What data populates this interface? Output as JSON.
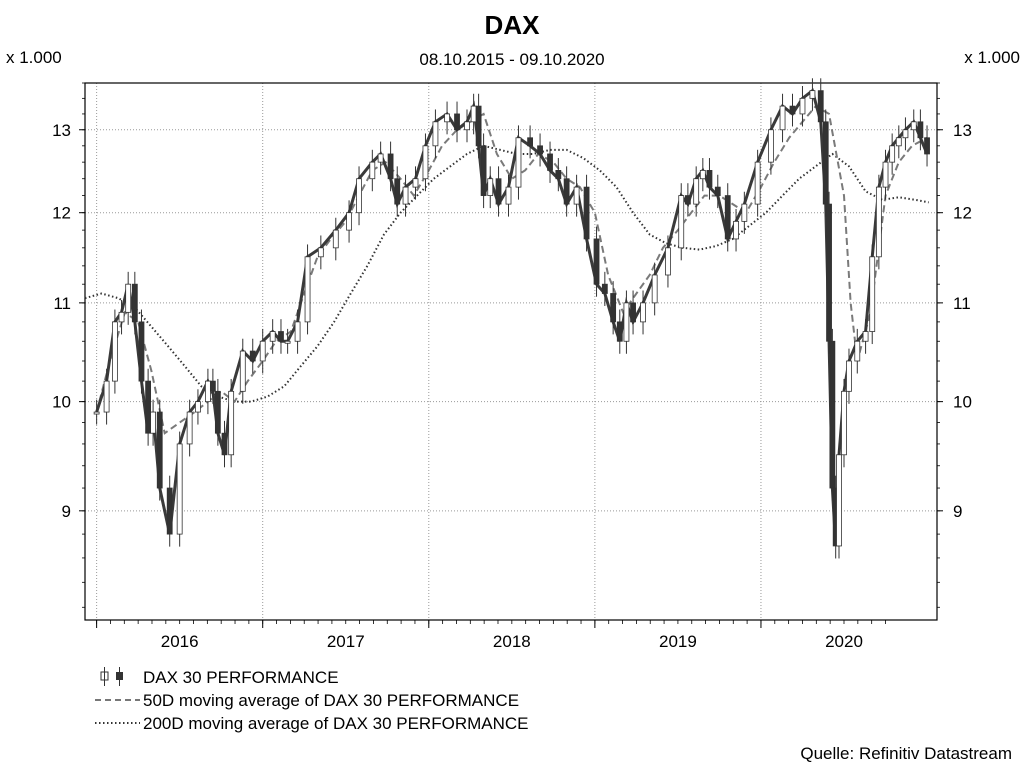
{
  "chart_data": {
    "type": "line",
    "title": "DAX",
    "subtitle": "08.10.2015 - 09.10.2020",
    "y_unit_left": "x 1.000",
    "y_unit_right": "x 1.000",
    "source": "Quelle: Refinitiv Datastream",
    "ylim": [
      8.1,
      13.6
    ],
    "xlim": [
      2015.7,
      2020.83
    ],
    "y_ticks": [
      9,
      10,
      11,
      12,
      13
    ],
    "x_year_ticks": [
      2016,
      2017,
      2018,
      2019,
      2020
    ],
    "x_year_labels": [
      "2016",
      "2017",
      "2018",
      "2019",
      "2020"
    ],
    "y_scale": "log",
    "grid": "dotted",
    "legend": [
      {
        "label": "DAX 30 PERFORMANCE",
        "style": "candlestick"
      },
      {
        "label": "50D moving average of DAX 30 PERFORMANCE",
        "style": "dashed"
      },
      {
        "label": "200D moving average of DAX 30 PERFORMANCE",
        "style": "dotted"
      }
    ],
    "series": [
      {
        "name": "DAX 30 PERFORMANCE",
        "x": [
          2015.77,
          2015.83,
          2015.88,
          2015.92,
          2015.96,
          2016.0,
          2016.04,
          2016.08,
          2016.11,
          2016.15,
          2016.21,
          2016.27,
          2016.33,
          2016.38,
          2016.44,
          2016.47,
          2016.5,
          2016.54,
          2016.58,
          2016.65,
          2016.71,
          2016.77,
          2016.83,
          2016.88,
          2016.92,
          2016.98,
          2017.04,
          2017.12,
          2017.21,
          2017.29,
          2017.35,
          2017.43,
          2017.48,
          2017.54,
          2017.58,
          2017.63,
          2017.69,
          2017.75,
          2017.81,
          2017.88,
          2017.94,
          2018.0,
          2018.04,
          2018.07,
          2018.1,
          2018.14,
          2018.19,
          2018.25,
          2018.31,
          2018.38,
          2018.44,
          2018.5,
          2018.55,
          2018.6,
          2018.66,
          2018.72,
          2018.78,
          2018.83,
          2018.88,
          2018.92,
          2018.96,
          2019.0,
          2019.06,
          2019.13,
          2019.21,
          2019.29,
          2019.33,
          2019.38,
          2019.42,
          2019.46,
          2019.51,
          2019.57,
          2019.62,
          2019.67,
          2019.75,
          2019.83,
          2019.9,
          2019.96,
          2020.02,
          2020.08,
          2020.13,
          2020.16,
          2020.18,
          2020.2,
          2020.22,
          2020.24,
          2020.27,
          2020.3,
          2020.35,
          2020.4,
          2020.44,
          2020.48,
          2020.52,
          2020.56,
          2020.6,
          2020.64,
          2020.69,
          2020.73,
          2020.77
        ],
        "values": [
          9.9,
          10.2,
          10.8,
          10.9,
          11.2,
          10.8,
          10.2,
          9.7,
          9.9,
          9.2,
          8.8,
          9.6,
          9.9,
          10.0,
          10.2,
          10.1,
          9.7,
          9.5,
          10.1,
          10.5,
          10.4,
          10.6,
          10.7,
          10.6,
          10.6,
          10.8,
          11.5,
          11.6,
          11.8,
          12.0,
          12.4,
          12.6,
          12.7,
          12.4,
          12.1,
          12.3,
          12.4,
          12.8,
          13.1,
          13.2,
          13.0,
          13.1,
          13.3,
          12.8,
          12.2,
          12.4,
          12.1,
          12.3,
          12.9,
          12.8,
          12.7,
          12.5,
          12.4,
          12.1,
          12.3,
          11.7,
          11.2,
          11.1,
          10.8,
          10.6,
          11.0,
          10.8,
          11.0,
          11.3,
          11.6,
          12.2,
          12.1,
          12.4,
          12.5,
          12.3,
          12.2,
          11.7,
          11.9,
          12.1,
          12.6,
          13.0,
          13.3,
          13.2,
          13.4,
          13.5,
          13.1,
          12.1,
          10.6,
          9.2,
          8.7,
          9.5,
          10.1,
          10.4,
          10.6,
          10.7,
          11.5,
          12.3,
          12.6,
          12.8,
          12.9,
          13.0,
          13.1,
          12.9,
          12.7
        ]
      },
      {
        "name": "50D moving average of DAX 30 PERFORMANCE",
        "x": [
          2015.77,
          2015.85,
          2015.94,
          2016.02,
          2016.1,
          2016.18,
          2016.27,
          2016.36,
          2016.44,
          2016.52,
          2016.6,
          2016.68,
          2016.77,
          2016.85,
          2016.94,
          2017.02,
          2017.1,
          2017.18,
          2017.27,
          2017.35,
          2017.43,
          2017.51,
          2017.6,
          2017.68,
          2017.77,
          2017.85,
          2017.94,
          2018.02,
          2018.1,
          2018.18,
          2018.27,
          2018.35,
          2018.43,
          2018.52,
          2018.6,
          2018.68,
          2018.77,
          2018.85,
          2018.94,
          2019.02,
          2019.1,
          2019.18,
          2019.27,
          2019.35,
          2019.43,
          2019.52,
          2019.6,
          2019.68,
          2019.77,
          2019.85,
          2019.94,
          2020.02,
          2020.1,
          2020.18,
          2020.27,
          2020.31,
          2020.35,
          2020.43,
          2020.52,
          2020.6,
          2020.68,
          2020.77
        ],
        "values": [
          9.9,
          10.4,
          10.9,
          10.8,
          10.3,
          9.7,
          9.8,
          9.9,
          10.0,
          10.1,
          10.0,
          10.2,
          10.4,
          10.6,
          10.7,
          11.1,
          11.5,
          11.7,
          11.9,
          12.2,
          12.5,
          12.6,
          12.4,
          12.2,
          12.5,
          12.8,
          13.0,
          13.1,
          13.2,
          12.7,
          12.4,
          12.5,
          12.7,
          12.6,
          12.4,
          12.3,
          12.0,
          11.3,
          10.9,
          11.1,
          11.3,
          11.6,
          11.8,
          12.0,
          12.2,
          12.2,
          12.1,
          12.0,
          12.3,
          12.6,
          12.9,
          13.1,
          13.3,
          13.2,
          12.2,
          11.0,
          10.4,
          10.9,
          12.2,
          12.6,
          12.8,
          12.9
        ]
      },
      {
        "name": "200D moving average of DAX 30 PERFORMANCE",
        "x": [
          2015.7,
          2015.8,
          2015.9,
          2016.0,
          2016.1,
          2016.2,
          2016.3,
          2016.4,
          2016.5,
          2016.6,
          2016.7,
          2016.8,
          2016.9,
          2017.0,
          2017.1,
          2017.2,
          2017.3,
          2017.4,
          2017.5,
          2017.6,
          2017.7,
          2017.8,
          2017.9,
          2018.0,
          2018.1,
          2018.2,
          2018.3,
          2018.4,
          2018.5,
          2018.6,
          2018.7,
          2018.8,
          2018.9,
          2019.0,
          2019.1,
          2019.2,
          2019.3,
          2019.4,
          2019.5,
          2019.6,
          2019.7,
          2019.8,
          2019.9,
          2020.0,
          2020.1,
          2020.2,
          2020.3,
          2020.4,
          2020.5,
          2020.6,
          2020.7,
          2020.78
        ],
        "values": [
          11.05,
          11.1,
          11.05,
          10.95,
          10.75,
          10.55,
          10.35,
          10.15,
          10.05,
          10.0,
          10.0,
          10.05,
          10.15,
          10.35,
          10.55,
          10.8,
          11.1,
          11.4,
          11.75,
          12.0,
          12.2,
          12.4,
          12.55,
          12.7,
          12.8,
          12.75,
          12.7,
          12.7,
          12.75,
          12.75,
          12.65,
          12.5,
          12.3,
          12.0,
          11.75,
          11.65,
          11.6,
          11.58,
          11.62,
          11.7,
          11.85,
          12.0,
          12.2,
          12.4,
          12.55,
          12.7,
          12.55,
          12.25,
          12.15,
          12.18,
          12.15,
          12.12
        ]
      }
    ]
  }
}
